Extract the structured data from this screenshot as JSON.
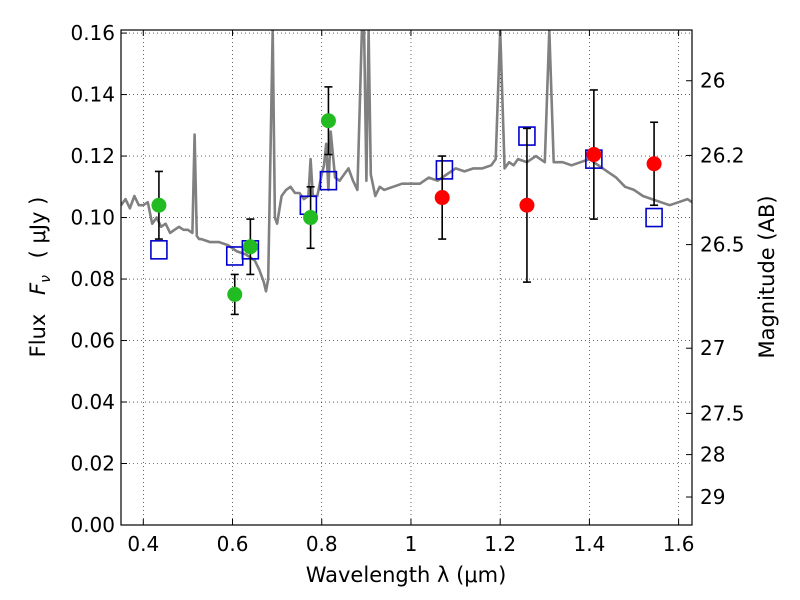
{
  "chart_data": {
    "type": "scatter",
    "xlabel": "Wavelength  λ (μm)",
    "ylabel_text": "Flux",
    "ylabel_symbol": "F",
    "ylabel_symbol_sub": "ν",
    "ylabel_units": "(  μJy  )",
    "y2label": "Magnitude (AB)",
    "xlim": [
      0.35,
      1.63
    ],
    "ylim": [
      0.0,
      0.161
    ],
    "x_ticks": [
      0.4,
      0.6,
      0.8,
      1.0,
      1.2,
      1.4,
      1.6
    ],
    "x_tick_labels": [
      "0.4",
      "0.6",
      "0.8",
      "1",
      "1.2",
      "1.4",
      "1.6"
    ],
    "y_ticks": [
      0.0,
      0.02,
      0.04,
      0.06,
      0.08,
      0.1,
      0.12,
      0.14,
      0.16
    ],
    "y_tick_labels": [
      "0.00",
      "0.02",
      "0.04",
      "0.06",
      "0.08",
      "0.10",
      "0.12",
      "0.14",
      "0.16"
    ],
    "y2_ticks": [
      {
        "label": "26",
        "flux": 0.1445
      },
      {
        "label": "26.2",
        "flux": 0.1202
      },
      {
        "label": "26.5",
        "flux": 0.0912
      },
      {
        "label": "27",
        "flux": 0.0575
      },
      {
        "label": "27.5",
        "flux": 0.0363
      },
      {
        "label": "28",
        "flux": 0.0229
      },
      {
        "label": "29",
        "flux": 0.0091
      }
    ],
    "grid": true,
    "series": [
      {
        "kind": "spectrum",
        "color": "#808080",
        "x": [
          0.35,
          0.36,
          0.37,
          0.38,
          0.39,
          0.4,
          0.41,
          0.42,
          0.43,
          0.44,
          0.45,
          0.46,
          0.47,
          0.48,
          0.49,
          0.5,
          0.51,
          0.515,
          0.52,
          0.525,
          0.53,
          0.55,
          0.57,
          0.59,
          0.61,
          0.63,
          0.65,
          0.66,
          0.67,
          0.675,
          0.68,
          0.69,
          0.695,
          0.7,
          0.71,
          0.72,
          0.73,
          0.74,
          0.75,
          0.76,
          0.77,
          0.775,
          0.78,
          0.79,
          0.8,
          0.805,
          0.81,
          0.815,
          0.82,
          0.83,
          0.84,
          0.85,
          0.86,
          0.87,
          0.88,
          0.89,
          0.895,
          0.9,
          0.905,
          0.91,
          0.92,
          0.93,
          0.94,
          0.96,
          0.98,
          1.0,
          1.02,
          1.04,
          1.06,
          1.08,
          1.1,
          1.12,
          1.14,
          1.16,
          1.18,
          1.19,
          1.2,
          1.21,
          1.22,
          1.23,
          1.24,
          1.26,
          1.28,
          1.3,
          1.31,
          1.32,
          1.34,
          1.36,
          1.38,
          1.4,
          1.42,
          1.44,
          1.46,
          1.48,
          1.5,
          1.52,
          1.54,
          1.56,
          1.58,
          1.6,
          1.62,
          1.63
        ],
        "y": [
          0.104,
          0.106,
          0.103,
          0.107,
          0.104,
          0.104,
          0.105,
          0.098,
          0.1,
          0.097,
          0.098,
          0.095,
          0.096,
          0.097,
          0.096,
          0.096,
          0.095,
          0.127,
          0.094,
          0.093,
          0.093,
          0.092,
          0.092,
          0.091,
          0.089,
          0.088,
          0.086,
          0.083,
          0.079,
          0.076,
          0.08,
          0.161,
          0.1,
          0.098,
          0.107,
          0.109,
          0.11,
          0.108,
          0.108,
          0.106,
          0.107,
          0.119,
          0.107,
          0.107,
          0.114,
          0.117,
          0.124,
          0.109,
          0.128,
          0.113,
          0.112,
          0.114,
          0.116,
          0.112,
          0.109,
          0.161,
          0.161,
          0.112,
          0.161,
          0.114,
          0.107,
          0.11,
          0.109,
          0.11,
          0.111,
          0.111,
          0.111,
          0.113,
          0.112,
          0.114,
          0.116,
          0.115,
          0.116,
          0.116,
          0.117,
          0.119,
          0.161,
          0.116,
          0.118,
          0.117,
          0.119,
          0.118,
          0.12,
          0.118,
          0.161,
          0.118,
          0.118,
          0.117,
          0.118,
          0.119,
          0.117,
          0.115,
          0.113,
          0.11,
          0.109,
          0.107,
          0.106,
          0.105,
          0.104,
          0.105,
          0.106,
          0.105
        ]
      },
      {
        "kind": "model-squares",
        "color": "#0000cc",
        "x": [
          0.435,
          0.605,
          0.64,
          0.77,
          0.815,
          1.075,
          1.26,
          1.41,
          1.545
        ],
        "y": [
          0.0895,
          0.0875,
          0.0895,
          0.104,
          0.112,
          0.1155,
          0.1265,
          0.119,
          0.1
        ]
      },
      {
        "kind": "points",
        "color": "#22bb22",
        "x": [
          0.435,
          0.605,
          0.64,
          0.775,
          0.815
        ],
        "y": [
          0.104,
          0.075,
          0.0905,
          0.1,
          0.1315
        ],
        "err": [
          0.011,
          0.0065,
          0.009,
          0.01,
          0.011
        ]
      },
      {
        "kind": "points",
        "color": "#ff0000",
        "x": [
          1.07,
          1.26,
          1.41,
          1.545
        ],
        "y": [
          0.1065,
          0.104,
          0.1205,
          0.1175
        ],
        "err": [
          0.0135,
          0.025,
          0.021,
          0.0135
        ]
      }
    ]
  }
}
